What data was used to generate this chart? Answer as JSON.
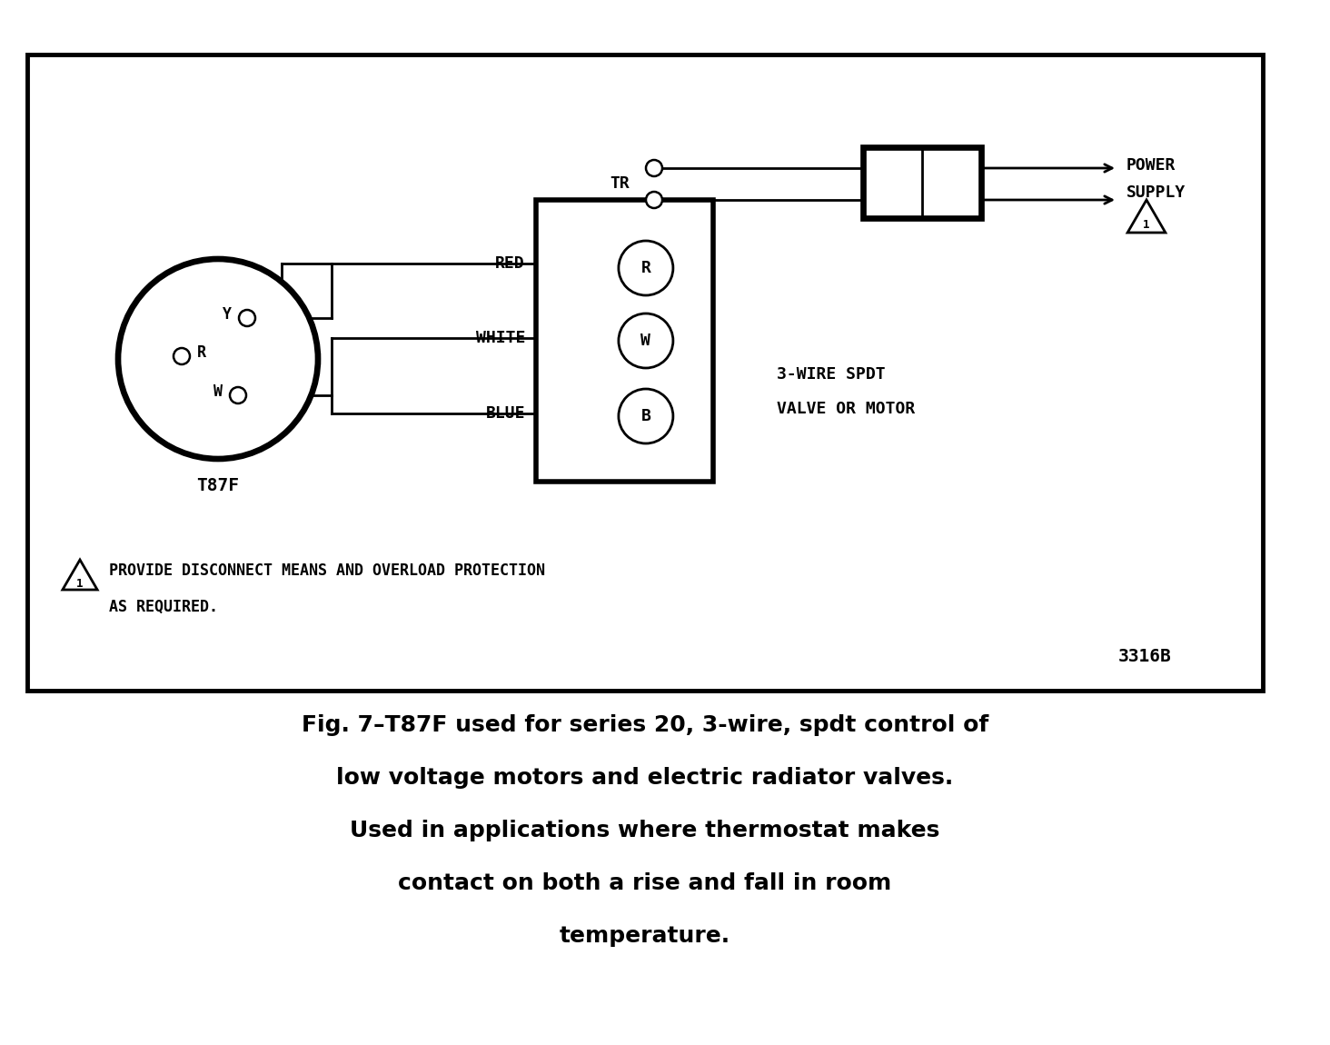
{
  "bg_color": "#ffffff",
  "caption_line1": "Fig. 7–T87F used for series 20, 3-wire, spdt control of",
  "caption_line2": "low voltage motors and electric radiator valves.",
  "caption_line3": "Used in applications where thermostat makes",
  "caption_line4": "contact on both a rise and fall in room",
  "caption_line5": "temperature.",
  "thermostat_label": "T87F",
  "terminal_block_label1": "3-WIRE SPDT",
  "terminal_block_label2": "VALVE OR MOTOR",
  "power_supply_label1": "POWER",
  "power_supply_label2": "SUPPLY",
  "tr_label": "TR",
  "red_label": "RED",
  "white_label": "WHITE",
  "blue_label": "BLUE",
  "note_line1": "PROVIDE DISCONNECT MEANS AND OVERLOAD PROTECTION",
  "note_line2": "AS REQUIRED.",
  "code_label": "3316B",
  "wire_r_label": "R",
  "wire_w_label": "W",
  "wire_b_label": "B",
  "thermostat_y": "Y",
  "thermostat_r": "R",
  "thermostat_w": "W"
}
